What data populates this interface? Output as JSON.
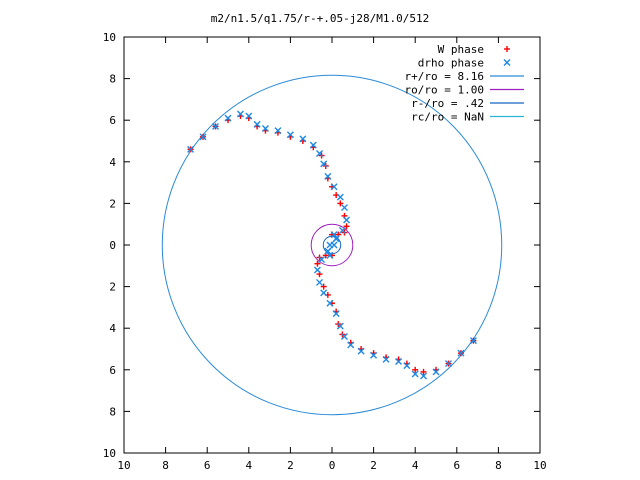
{
  "chart_data": {
    "type": "scatter",
    "title": "m2/n1.5/q1.75/r-+.05-j28/M1.0/512",
    "xlabel": "",
    "ylabel": "",
    "xlim": [
      -10,
      10
    ],
    "ylim": [
      -10,
      10
    ],
    "x_tick_values": [
      -10,
      -8,
      -6,
      -4,
      -2,
      0,
      2,
      4,
      6,
      8,
      10
    ],
    "x_tick_labels": [
      "10",
      "8",
      "6",
      "4",
      "2",
      "0",
      "2",
      "4",
      "6",
      "8",
      "10"
    ],
    "y_tick_values": [
      10,
      8,
      6,
      4,
      2,
      0,
      -2,
      -4,
      -6,
      -8,
      -10
    ],
    "y_tick_labels": [
      "10",
      "8",
      "6",
      "4",
      "2",
      "0",
      "2",
      "4",
      "6",
      "8",
      "10"
    ],
    "grid": false,
    "legend_position": "top-right",
    "series": [
      {
        "name": "W phase",
        "kind": "points",
        "marker": "plus",
        "color": "#ff0000",
        "x": [
          -6.8,
          -6.2,
          -5.6,
          -5.0,
          -4.4,
          -4.0,
          -3.6,
          -3.2,
          -2.6,
          -2.0,
          -1.4,
          -0.9,
          -0.5,
          -0.3,
          -0.2,
          0.0,
          0.2,
          0.4,
          0.6,
          0.7,
          0.6,
          0.3,
          0.0,
          6.8,
          6.2,
          5.6,
          5.0,
          4.4,
          4.0,
          3.6,
          3.2,
          2.6,
          2.0,
          1.4,
          0.9,
          0.5,
          0.3,
          0.2,
          0.0,
          -0.2,
          -0.4,
          -0.6,
          -0.7,
          -0.6,
          -0.3,
          0.0
        ],
        "y": [
          4.6,
          5.2,
          5.7,
          6.0,
          6.2,
          6.1,
          5.7,
          5.5,
          5.4,
          5.2,
          5.0,
          4.7,
          4.3,
          3.8,
          3.2,
          2.8,
          2.4,
          2.0,
          1.4,
          0.9,
          0.6,
          0.5,
          0.5,
          -4.6,
          -5.2,
          -5.7,
          -6.0,
          -6.1,
          -6.0,
          -5.7,
          -5.5,
          -5.4,
          -5.2,
          -5.0,
          -4.7,
          -4.3,
          -3.8,
          -3.2,
          -2.8,
          -2.4,
          -2.0,
          -1.4,
          -0.9,
          -0.6,
          -0.5,
          -0.5
        ]
      },
      {
        "name": "drho phase",
        "kind": "points",
        "marker": "x",
        "color": "#1e88e5",
        "x": [
          -6.8,
          -6.2,
          -5.6,
          -5.0,
          -4.4,
          -4.0,
          -3.6,
          -3.2,
          -2.6,
          -2.0,
          -1.4,
          -0.9,
          -0.6,
          -0.4,
          -0.2,
          0.1,
          0.4,
          0.6,
          0.7,
          0.5,
          0.2,
          -0.1,
          -0.2,
          -0.1,
          6.8,
          6.2,
          5.6,
          5.0,
          4.4,
          4.0,
          3.6,
          3.2,
          2.6,
          2.0,
          1.4,
          0.9,
          0.6,
          0.4,
          0.2,
          -0.1,
          -0.4,
          -0.6,
          -0.7,
          -0.5,
          -0.2,
          0.1,
          0.2,
          0.1
        ],
        "y": [
          4.6,
          5.2,
          5.7,
          6.1,
          6.3,
          6.2,
          5.8,
          5.6,
          5.5,
          5.3,
          5.1,
          4.8,
          4.4,
          3.9,
          3.3,
          2.8,
          2.3,
          1.8,
          1.2,
          0.7,
          0.3,
          0.0,
          -0.3,
          -0.5,
          -4.6,
          -5.2,
          -5.7,
          -6.1,
          -6.3,
          -6.2,
          -5.8,
          -5.6,
          -5.5,
          -5.3,
          -5.1,
          -4.8,
          -4.4,
          -3.9,
          -3.3,
          -2.8,
          -2.3,
          -1.8,
          -1.2,
          -0.7,
          -0.3,
          0.0,
          0.3,
          0.5
        ]
      },
      {
        "name": "r+/ro = 8.16",
        "kind": "circle",
        "radius": 8.16,
        "color": "#2a8ad8"
      },
      {
        "name": "ro/ro = 1.00",
        "kind": "circle",
        "radius": 1.0,
        "color": "#a020c0"
      },
      {
        "name": "r-/ro = .42",
        "kind": "circle",
        "radius": 0.42,
        "color": "#1565c0"
      },
      {
        "name": "rc/ro = NaN",
        "kind": "circle",
        "radius": null,
        "color": "#29b6d6"
      }
    ]
  }
}
